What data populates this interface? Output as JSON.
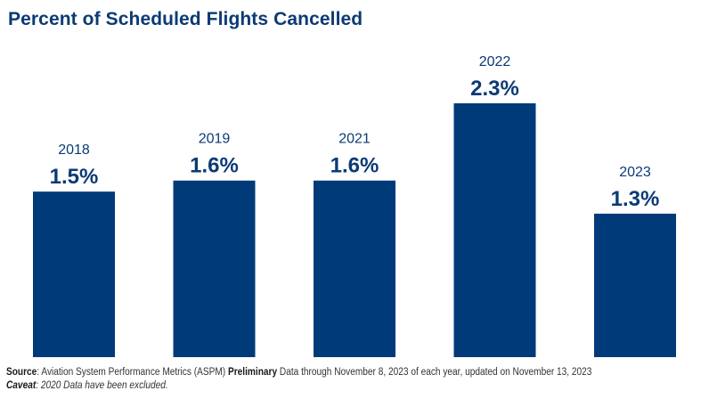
{
  "chart_data": {
    "type": "bar",
    "title": "Percent of Scheduled Flights Cancelled",
    "categories": [
      "2018",
      "2019",
      "2021",
      "2022",
      "2023"
    ],
    "values": [
      1.5,
      1.6,
      1.6,
      2.3,
      1.3
    ],
    "value_labels": [
      "1.5%",
      "1.6%",
      "1.6%",
      "2.3%",
      "1.3%"
    ],
    "xlabel": "",
    "ylabel": "",
    "ylim": [
      0,
      2.3
    ],
    "grid": false,
    "legend": "none",
    "colors": {
      "bar": "#003a78",
      "label": "#0b3a75"
    }
  },
  "footer": {
    "source_label": "Source",
    "source_text": ": Aviation System Performance Metrics (ASPM) ",
    "preliminary_label": "Preliminary",
    "source_rest": " Data through November 8, 2023 of each year, updated on November 13, 2023",
    "caveat_label": "Caveat",
    "caveat_text": ": 2020 Data have been excluded."
  }
}
